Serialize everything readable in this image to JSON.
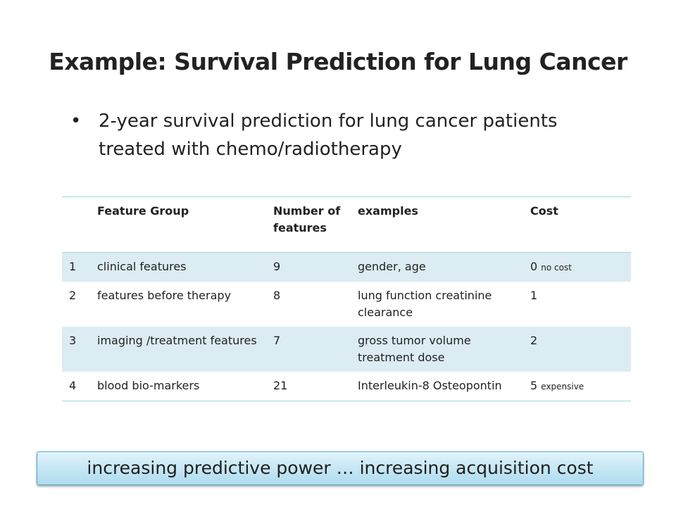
{
  "title": "Example: Survival Prediction for Lung Cancer",
  "bullet": {
    "marker": "•",
    "text": "2-year survival prediction for lung cancer  patients treated with chemo/radiotherapy"
  },
  "table": {
    "headers": [
      "",
      "Feature Group",
      "Number of features",
      "examples",
      "Cost"
    ],
    "rows": [
      {
        "idx": "1",
        "group": "clinical features",
        "count": "9",
        "examples": "gender, age",
        "cost": "0",
        "cost_note": "no cost"
      },
      {
        "idx": "2",
        "group": "features before therapy",
        "count": "8",
        "examples": "lung function creatinine clearance",
        "cost": "1",
        "cost_note": ""
      },
      {
        "idx": "3",
        "group": "imaging /treatment features",
        "count": "7",
        "examples": "gross tumor volume treatment dose",
        "cost": "2",
        "cost_note": ""
      },
      {
        "idx": "4",
        "group": "blood bio-markers",
        "count": "21",
        "examples": "Interleukin-8 Osteopontin",
        "cost": "5",
        "cost_note": "expensive"
      }
    ]
  },
  "banner": "increasing predictive power …  increasing acquisition cost"
}
